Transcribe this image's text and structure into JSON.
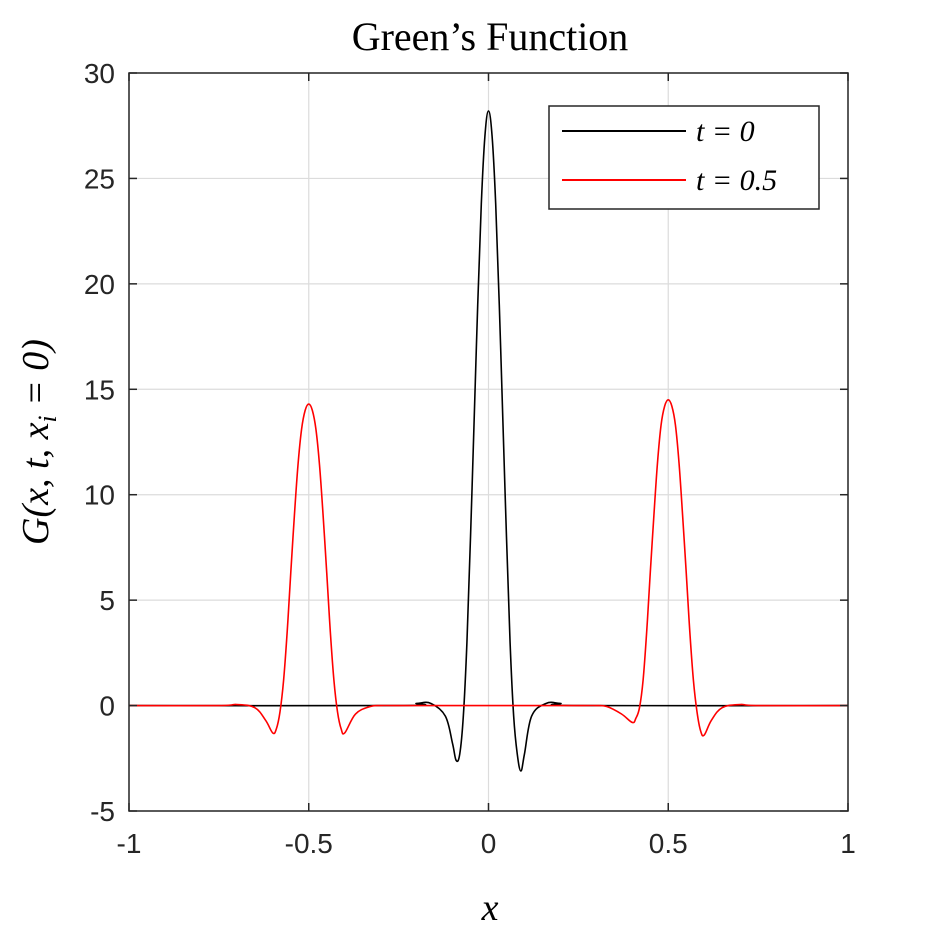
{
  "chart_data": {
    "type": "line",
    "title": "Green’s Function",
    "xlabel": "x",
    "ylabel": "G(x, t, x_i = 0)",
    "xlim": [
      -1,
      1
    ],
    "ylim": [
      -5,
      30
    ],
    "xticks": [
      -1,
      -0.5,
      0,
      0.5,
      1
    ],
    "xtick_labels": [
      "-1",
      "-0.5",
      "0",
      "0.5",
      "1"
    ],
    "yticks": [
      -5,
      0,
      5,
      10,
      15,
      20,
      25,
      30
    ],
    "ytick_labels": [
      "-5",
      "0",
      "5",
      "10",
      "15",
      "20",
      "25",
      "30"
    ],
    "grid": true,
    "legend_position": "top-right",
    "series": [
      {
        "name": "t = 0",
        "color": "#000000",
        "x": [
          -1,
          -0.25,
          -0.2,
          -0.16,
          -0.12,
          -0.1,
          -0.09,
          -0.08,
          -0.07,
          -0.06,
          -0.05,
          -0.04,
          -0.03,
          -0.02,
          -0.01,
          0,
          0.01,
          0.02,
          0.03,
          0.04,
          0.05,
          0.06,
          0.07,
          0.08,
          0.09,
          0.1,
          0.12,
          0.16,
          0.2,
          0.25,
          1
        ],
        "y": [
          0,
          0,
          0.1,
          0.1,
          -0.5,
          -1.8,
          -2.6,
          -2.3,
          -0.5,
          3.0,
          8.0,
          13.5,
          19.0,
          23.8,
          27.0,
          28.2,
          27.0,
          23.8,
          19.0,
          13.5,
          8.0,
          3.0,
          -0.5,
          -2.3,
          -3.1,
          -2.3,
          -0.5,
          0.1,
          0.1,
          0,
          0
        ]
      },
      {
        "name": "t = 0.5",
        "color": "#ff0000",
        "x": [
          -1,
          -0.75,
          -0.7,
          -0.65,
          -0.62,
          -0.6,
          -0.59,
          -0.58,
          -0.57,
          -0.56,
          -0.55,
          -0.54,
          -0.53,
          -0.52,
          -0.51,
          -0.5,
          -0.49,
          -0.48,
          -0.47,
          -0.46,
          -0.45,
          -0.44,
          -0.43,
          -0.42,
          -0.41,
          -0.4,
          -0.37,
          -0.33,
          -0.3,
          -0.25,
          0,
          0.25,
          0.3,
          0.33,
          0.37,
          0.4,
          0.41,
          0.42,
          0.43,
          0.44,
          0.45,
          0.46,
          0.47,
          0.48,
          0.49,
          0.5,
          0.51,
          0.52,
          0.53,
          0.54,
          0.55,
          0.56,
          0.57,
          0.58,
          0.59,
          0.6,
          0.62,
          0.65,
          0.7,
          0.75,
          1
        ],
        "y": [
          0,
          0,
          0.05,
          -0.1,
          -0.7,
          -1.3,
          -1.1,
          -0.3,
          1.2,
          3.5,
          6.3,
          9.0,
          11.4,
          13.1,
          14.0,
          14.3,
          14.0,
          13.1,
          11.4,
          9.0,
          6.3,
          3.5,
          1.2,
          -0.3,
          -1.1,
          -1.3,
          -0.4,
          -0.05,
          0,
          0,
          0,
          0,
          0,
          -0.05,
          -0.4,
          -0.8,
          -0.6,
          -0.1,
          1.2,
          3.5,
          6.3,
          9.0,
          11.5,
          13.3,
          14.2,
          14.5,
          14.2,
          13.3,
          11.5,
          9.0,
          6.3,
          3.5,
          1.2,
          -0.3,
          -1.2,
          -1.4,
          -0.7,
          -0.1,
          0.05,
          0,
          0
        ]
      }
    ]
  }
}
